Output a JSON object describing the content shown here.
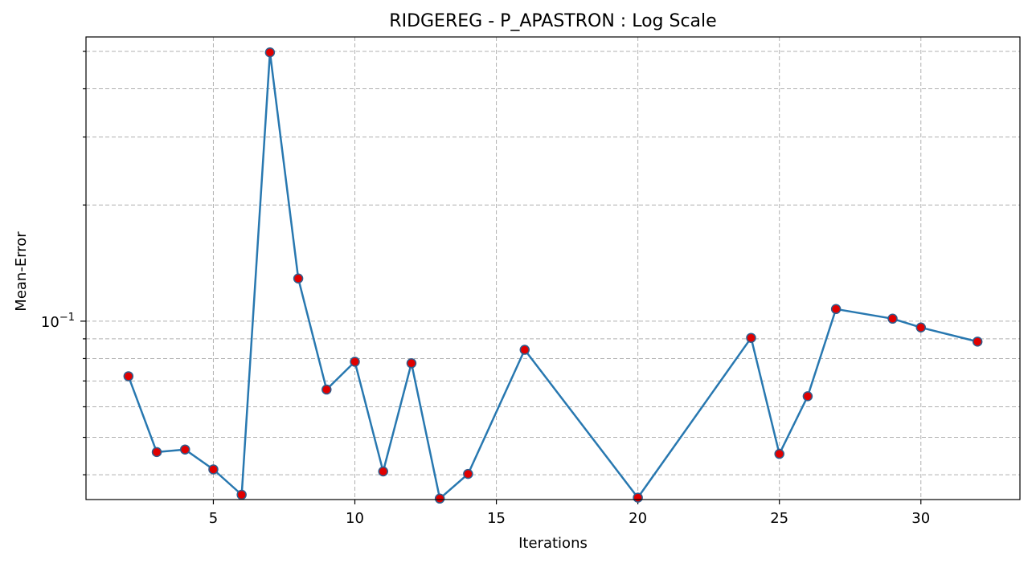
{
  "chart_data": {
    "type": "line",
    "title": "RIDGEREG - P_APASTRON : Log Scale",
    "xlabel": "Iterations",
    "ylabel": "Mean-Error",
    "yscale": "log",
    "xlim": [
      0.5,
      33.5
    ],
    "ylim": [
      0.0345,
      0.545
    ],
    "grid": true,
    "x_ticks": [
      5,
      10,
      15,
      20,
      25,
      30
    ],
    "y_tick_labels": [
      {
        "value": 0.1,
        "base": "10",
        "exp": "−1"
      }
    ],
    "y_minor_grid": [
      0.04,
      0.05,
      0.06,
      0.07,
      0.08,
      0.09,
      0.2,
      0.3,
      0.4,
      0.5
    ],
    "series": [
      {
        "x": [
          2,
          3,
          4,
          5,
          6,
          7,
          8,
          9,
          10,
          11,
          12,
          13,
          14,
          16,
          20,
          24,
          25,
          26,
          27,
          29,
          30,
          32
        ],
        "y": [
          0.072,
          0.0458,
          0.0465,
          0.0413,
          0.0355,
          0.497,
          0.129,
          0.0665,
          0.0785,
          0.0408,
          0.0778,
          0.0347,
          0.0402,
          0.0843,
          0.0349,
          0.0905,
          0.0453,
          0.0639,
          0.1075,
          0.1015,
          0.0963,
          0.0885
        ],
        "line_color": "#2878b0",
        "marker_color": "#e00000"
      }
    ]
  }
}
